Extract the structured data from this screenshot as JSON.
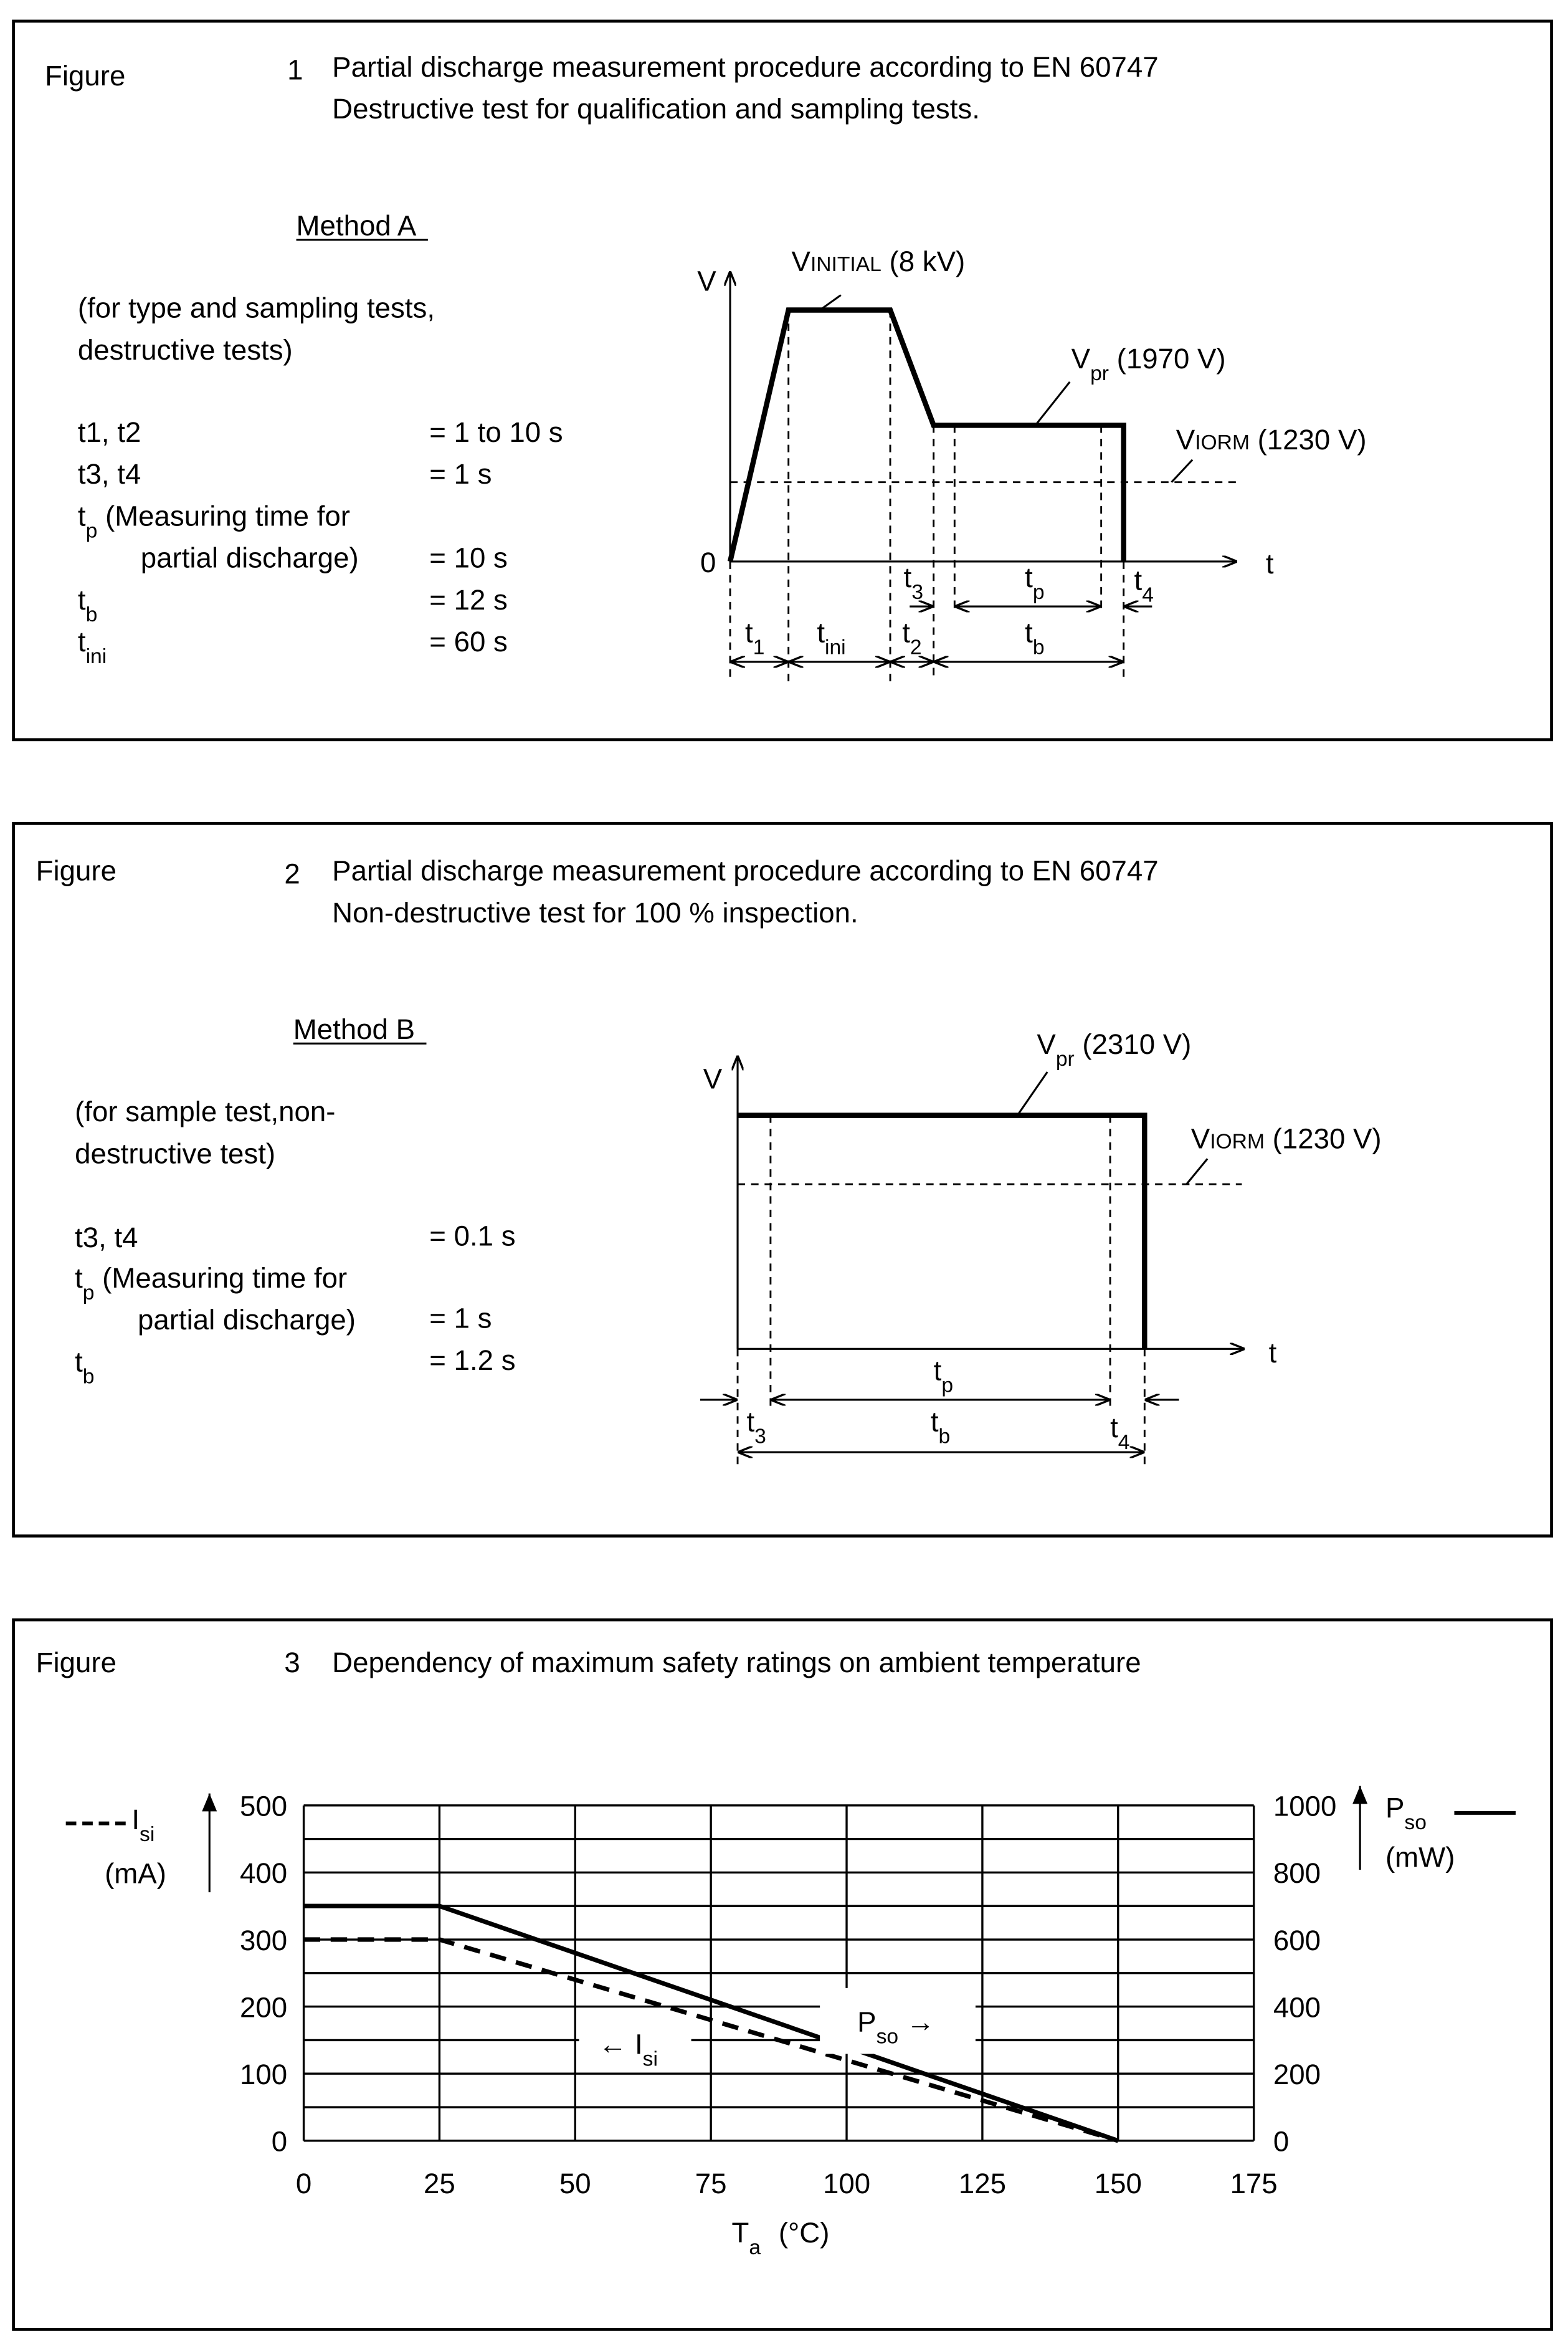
{
  "figure1": {
    "label": "Figure",
    "number": "1",
    "title_lines": [
      "Partial discharge measurement procedure according to EN 60747",
      "Destructive test for qualification and sampling tests."
    ],
    "method": "Method A",
    "desc_lines": [
      "(for type and sampling tests,",
      "destructive tests)"
    ],
    "params": [
      {
        "name": "t1, t2",
        "value": "= 1 to 10 s"
      },
      {
        "name": "t3, t4",
        "value": "= 1 s"
      },
      {
        "sym": "t",
        "sub": "p",
        "rest": " (Measuring time for"
      },
      {
        "name": "partial discharge)",
        "value": "= 10 s"
      },
      {
        "sym": "t",
        "sub": "b",
        "value": "= 12 s"
      },
      {
        "sym": "t",
        "sub": "ini",
        "value": "= 60 s"
      }
    ],
    "diagram": {
      "v_axis": "V",
      "t_axis": "t",
      "origin": "0",
      "vinitial": {
        "main": "V",
        "sub": "INITIAL",
        "rest": " (8 kV)"
      },
      "vpr": {
        "main": "V",
        "sub": "pr",
        "rest": " (1970 V)"
      },
      "viorm": {
        "main": "V",
        "sub": "IORM",
        "rest": " (1230 V)"
      },
      "intervals": {
        "t1": "1",
        "tini": "ini",
        "t2": "2",
        "tb": "b",
        "t3": "3",
        "tp": "p",
        "t4": "4",
        "t": "t"
      }
    }
  },
  "figure2": {
    "label": "Figure",
    "number": "2",
    "title_lines": [
      "Partial discharge measurement procedure according to EN 60747",
      "Non-destructive test for 100 % inspection."
    ],
    "method": "Method B",
    "desc_lines": [
      "(for sample test,non-",
      "destructive test)"
    ],
    "params": [
      {
        "name": "t3, t4",
        "value": "= 0.1 s"
      },
      {
        "sym": "t",
        "sub": "p",
        "rest": " (Measuring time for"
      },
      {
        "name": "partial discharge)",
        "value": "= 1 s"
      },
      {
        "sym": "t",
        "sub": "b",
        "value": "= 1.2 s"
      }
    ],
    "diagram": {
      "v_axis": "V",
      "t_axis": "t",
      "vpr": {
        "main": "V",
        "sub": "pr",
        "rest": " (2310 V)"
      },
      "viorm": {
        "main": "V",
        "sub": "IORM",
        "rest": " (1230 V)"
      },
      "intervals": {
        "t": "t",
        "tp": "p",
        "t3": "3",
        "tb": "b",
        "t4": "4"
      }
    }
  },
  "figure3": {
    "label": "Figure",
    "number": "3",
    "title": "Dependency of maximum safety ratings on ambient temperature"
  },
  "chart_data": {
    "type": "line",
    "title": "Dependency of maximum safety ratings on ambient temperature",
    "xlabel": {
      "main": "T",
      "sub": "a",
      "unit": "(°C)"
    },
    "x_ticks": [
      "0",
      "25",
      "50",
      "75",
      "100",
      "125",
      "150",
      "175"
    ],
    "xlim": [
      0,
      175
    ],
    "y_left": {
      "label_main": "I",
      "label_sub": "si",
      "unit": "(mA)",
      "lim": [
        0,
        500
      ],
      "ticks": [
        "0",
        "100",
        "200",
        "300",
        "400",
        "500"
      ]
    },
    "y_right": {
      "label_main": "P",
      "label_sub": "so",
      "unit": "(mW)",
      "lim": [
        0,
        1000
      ],
      "ticks": [
        "0",
        "200",
        "400",
        "600",
        "800",
        "1000"
      ]
    },
    "grid": true,
    "series": [
      {
        "name": "Isi",
        "axis": "left",
        "style": "dashed",
        "x": [
          0,
          25,
          150
        ],
        "y": [
          300,
          300,
          0
        ]
      },
      {
        "name": "Pso",
        "axis": "right",
        "style": "solid",
        "x": [
          0,
          25,
          150
        ],
        "y": [
          700,
          700,
          0
        ]
      }
    ],
    "annotations": {
      "pso": {
        "main": "P",
        "sub": "so",
        "arrow": " →"
      },
      "isi": {
        "arrow": "← ",
        "main": "I",
        "sub": "si"
      }
    }
  }
}
